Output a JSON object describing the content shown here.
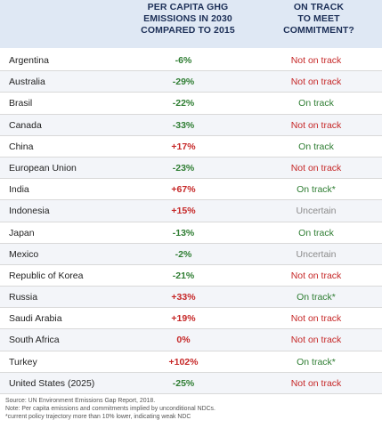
{
  "header": {
    "pct_label": "PER CAPITA GHG\nEMISSIONS IN 2030\nCOMPARED TO 2015",
    "track_label": "ON TRACK\nTO MEET\nCOMMITMENT?"
  },
  "colors": {
    "negative": "#2e7d32",
    "positive": "#c62828",
    "on_track": "#2e7d32",
    "not_on_track": "#c62828",
    "uncertain": "#8a8a8a"
  },
  "rows": [
    {
      "country": "Argentina",
      "pct": "-6%",
      "sign": "negative",
      "status": "Not on track",
      "status_key": "not_on_track"
    },
    {
      "country": "Australia",
      "pct": "-29%",
      "sign": "negative",
      "status": "Not on track",
      "status_key": "not_on_track"
    },
    {
      "country": "Brasil",
      "pct": "-22%",
      "sign": "negative",
      "status": "On track",
      "status_key": "on_track"
    },
    {
      "country": "Canada",
      "pct": "-33%",
      "sign": "negative",
      "status": "Not on track",
      "status_key": "not_on_track"
    },
    {
      "country": "China",
      "pct": "+17%",
      "sign": "positive",
      "status": "On track",
      "status_key": "on_track"
    },
    {
      "country": "European Union",
      "pct": "-23%",
      "sign": "negative",
      "status": "Not on track",
      "status_key": "not_on_track"
    },
    {
      "country": "India",
      "pct": "+67%",
      "sign": "positive",
      "status": "On track*",
      "status_key": "on_track"
    },
    {
      "country": "Indonesia",
      "pct": "+15%",
      "sign": "positive",
      "status": "Uncertain",
      "status_key": "uncertain"
    },
    {
      "country": "Japan",
      "pct": "-13%",
      "sign": "negative",
      "status": "On track",
      "status_key": "on_track"
    },
    {
      "country": "Mexico",
      "pct": "-2%",
      "sign": "negative",
      "status": "Uncertain",
      "status_key": "uncertain"
    },
    {
      "country": "Republic of Korea",
      "pct": "-21%",
      "sign": "negative",
      "status": "Not on track",
      "status_key": "not_on_track"
    },
    {
      "country": "Russia",
      "pct": "+33%",
      "sign": "positive",
      "status": "On track*",
      "status_key": "on_track"
    },
    {
      "country": "Saudi Arabia",
      "pct": "+19%",
      "sign": "positive",
      "status": "Not on track",
      "status_key": "not_on_track"
    },
    {
      "country": "South Africa",
      "pct": "0%",
      "sign": "positive",
      "status": "Not on track",
      "status_key": "not_on_track"
    },
    {
      "country": "Turkey",
      "pct": "+102%",
      "sign": "positive",
      "status": "On track*",
      "status_key": "on_track"
    },
    {
      "country": "United States (2025)",
      "pct": "-25%",
      "sign": "negative",
      "status": "Not on track",
      "status_key": "not_on_track"
    }
  ],
  "footer": {
    "source": "Source: UN Environment Emissions Gap Report, 2018.",
    "note": "Note: Per capita emissions and commitments implied by unconditional NDCs.",
    "asterisk": "*current policy trajectory more than 10% lower, indicating weak NDC"
  }
}
